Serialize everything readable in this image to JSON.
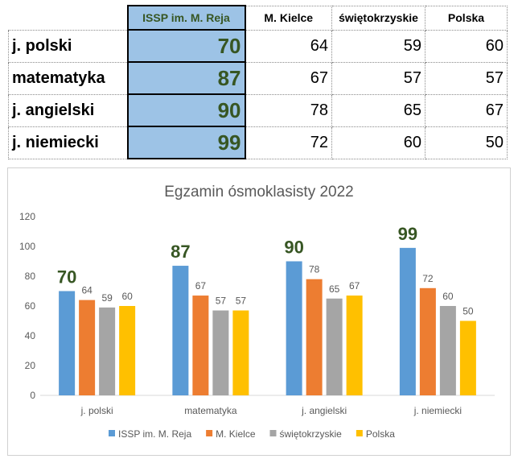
{
  "table": {
    "headers": [
      "ISSP im. M. Reja",
      "M. Kielce",
      "świętokrzyskie",
      "Polska"
    ],
    "rows": [
      {
        "subject": "j. polski",
        "values": [
          "70",
          "64",
          "59",
          "60"
        ]
      },
      {
        "subject": "matematyka",
        "values": [
          "87",
          "67",
          "57",
          "57"
        ]
      },
      {
        "subject": "j. angielski",
        "values": [
          "90",
          "78",
          "65",
          "67"
        ]
      },
      {
        "subject": "j. niemiecki",
        "values": [
          "99",
          "72",
          "60",
          "50"
        ]
      }
    ]
  },
  "chart_data": {
    "type": "bar",
    "title": "Egzamin ósmoklasisty 2022",
    "categories": [
      "j. polski",
      "matematyka",
      "j. angielski",
      "j. niemiecki"
    ],
    "series": [
      {
        "name": "ISSP im. M. Reja",
        "values": [
          70,
          87,
          90,
          99
        ],
        "color": "#5b9bd5"
      },
      {
        "name": "M. Kielce",
        "values": [
          64,
          67,
          78,
          72
        ],
        "color": "#ed7d31"
      },
      {
        "name": "świętokrzyskie",
        "values": [
          59,
          57,
          65,
          60
        ],
        "color": "#a5a5a5"
      },
      {
        "name": "Polska",
        "values": [
          60,
          57,
          67,
          50
        ],
        "color": "#ffc000"
      }
    ],
    "ylim": [
      0,
      120
    ],
    "yticks": [
      0,
      20,
      40,
      60,
      80,
      100,
      120
    ],
    "grid": false,
    "legend": "bottom",
    "highlight_color": "#375623"
  }
}
